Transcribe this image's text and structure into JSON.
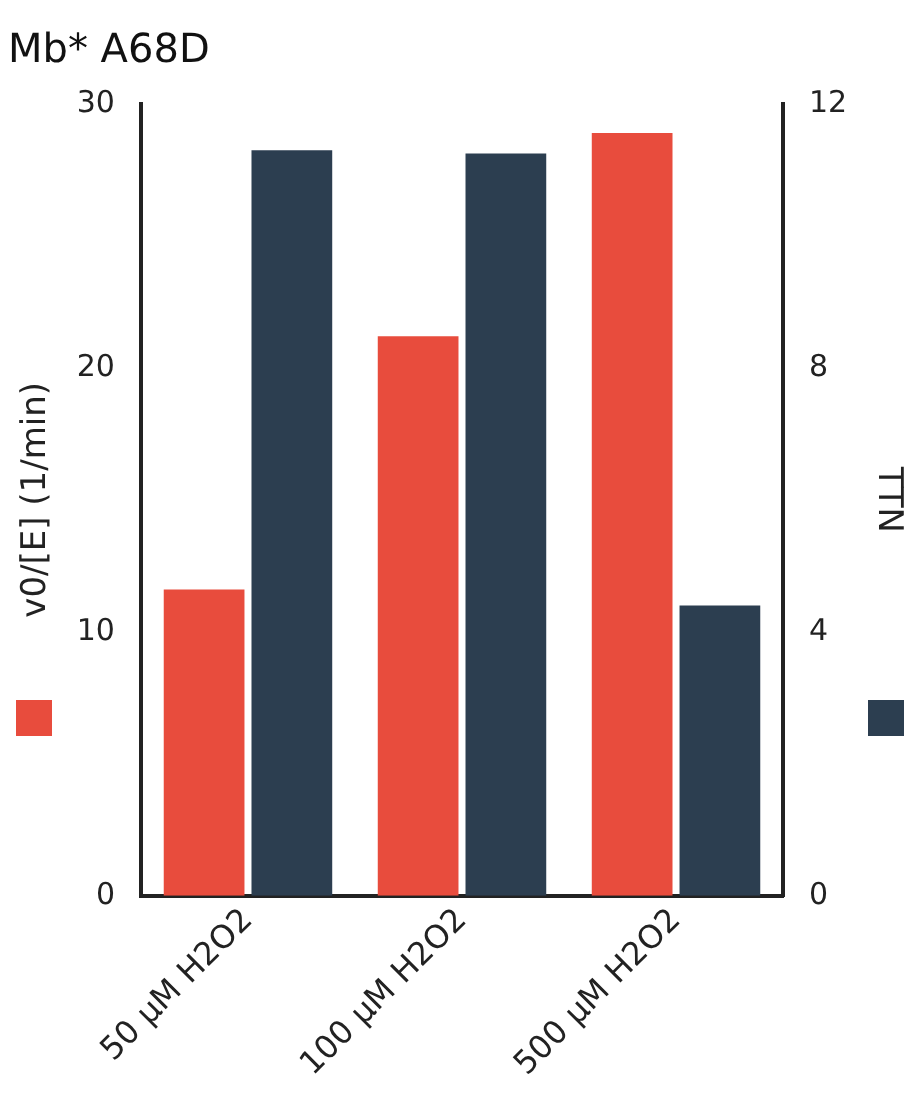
{
  "chart_data": {
    "type": "bar",
    "title": "Mb* A68D",
    "categories": [
      "50 µM H2O2",
      "100 µM H2O2",
      "500 µM H2O2"
    ],
    "series": [
      {
        "color": "#e84c3d",
        "values": [
          11.6,
          21.2,
          28.9
        ]
      },
      {
        "color": "#2c3e50",
        "values": [
          11.3,
          11.25,
          4.4
        ],
        "axis": "y2"
      }
    ],
    "ylabel": "v0/[E] (1/min)",
    "y2label": "TTN",
    "ylim": [
      0,
      30
    ],
    "yticks": [
      0,
      10,
      20,
      30
    ],
    "y2lim": [
      0,
      12
    ],
    "y2ticks": [
      0,
      4,
      8,
      12
    ],
    "grid": false,
    "legend": false
  }
}
